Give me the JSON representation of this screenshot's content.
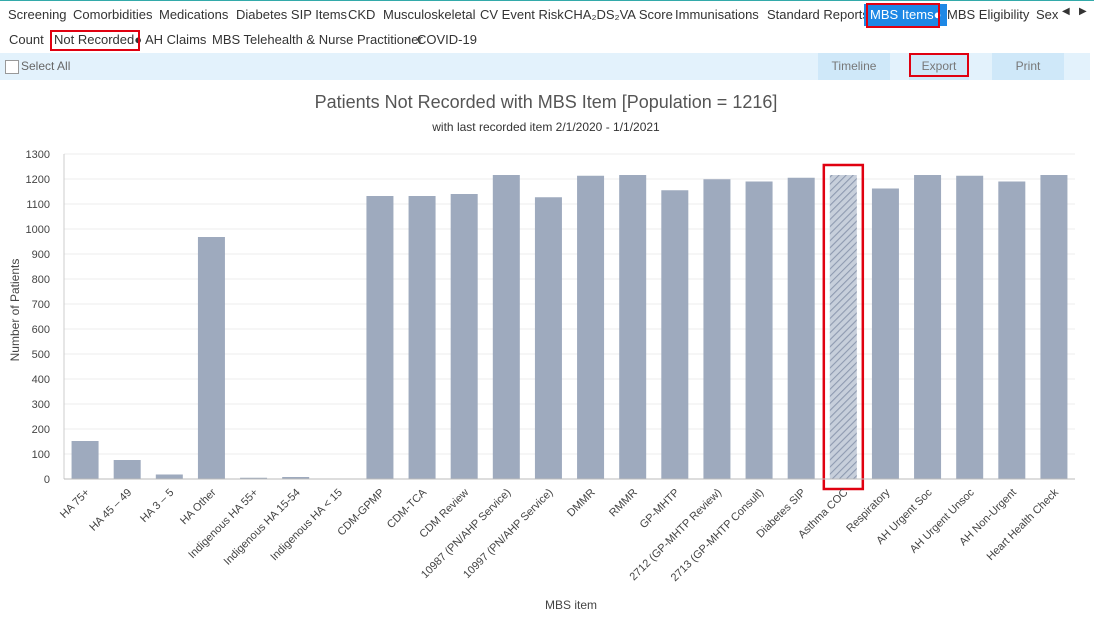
{
  "tabs": [
    {
      "label": "Screening"
    },
    {
      "label": "Comorbidities"
    },
    {
      "label": "Medications"
    },
    {
      "label": "Diabetes SIP Items"
    },
    {
      "label": "CKD"
    },
    {
      "label": "Musculoskeletal"
    },
    {
      "label": "CV Event Risk"
    },
    {
      "label": "CHA₂DS₂VA Score"
    },
    {
      "label": "Immunisations"
    },
    {
      "label": "Standard Reports"
    },
    {
      "label": "MBS Items●",
      "active": true
    },
    {
      "label": "MBS Eligibility"
    },
    {
      "label": "Sexual"
    }
  ],
  "subtabs": [
    {
      "label": "Count"
    },
    {
      "label": "Not Recorded●",
      "active": true
    },
    {
      "label": "AH Claims"
    },
    {
      "label": "MBS Telehealth & Nurse Practitioner"
    },
    {
      "label": "COVID-19"
    }
  ],
  "toolbar": {
    "select_all": "Select All",
    "timeline": "Timeline",
    "export": "Export",
    "print": "Print"
  },
  "chart_data": {
    "type": "bar",
    "title": "Patients Not Recorded with MBS Item [Population = 1216]",
    "subtitle": "with last recorded item 2/1/2020 - 1/1/2021",
    "xlabel": "MBS item",
    "ylabel": "Number of Patients",
    "ylim": [
      0,
      1300
    ],
    "yticks": [
      0,
      100,
      200,
      300,
      400,
      500,
      600,
      700,
      800,
      900,
      1000,
      1100,
      1200,
      1300
    ],
    "grid": true,
    "categories": [
      "HA 75+",
      "HA 45 – 49",
      "HA 3 – 5",
      "HA Other",
      "Indigenous HA 55+",
      "Indigenous HA 15-54",
      "Indigenous HA < 15",
      "CDM-GPMP",
      "CDM-TCA",
      "CDM Review",
      "10987 (PN/AHP Service)",
      "10997 (PN/AHP Service)",
      "DMMR",
      "RMMR",
      "GP-MHTP",
      "2712 (GP-MHTP Review)",
      "2713 (GP-MHTP Consult)",
      "Diabetes SIP",
      "Asthma COC",
      "Respiratory",
      "AH Urgent Soc",
      "AH Urgent Unsoc",
      "AH Non-Urgent",
      "Heart Health Check"
    ],
    "values": [
      152,
      76,
      18,
      968,
      5,
      8,
      0,
      1132,
      1132,
      1140,
      1216,
      1127,
      1213,
      1216,
      1155,
      1199,
      1190,
      1205,
      1216,
      1162,
      1216,
      1213,
      1190,
      1216
    ],
    "highlighted": "Asthma COC",
    "bar_color": "#9eaabe"
  }
}
